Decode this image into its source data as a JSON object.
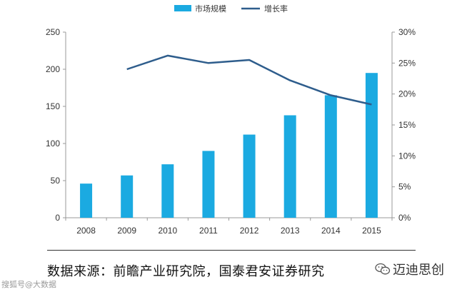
{
  "chart_data": {
    "type": "bar",
    "categories": [
      "2008",
      "2009",
      "2010",
      "2011",
      "2012",
      "2013",
      "2014",
      "2015"
    ],
    "series": [
      {
        "name": "市场规模",
        "type": "bar",
        "axis": "left",
        "color": "#1BAAE1",
        "values": [
          46,
          57,
          72,
          90,
          112,
          138,
          165,
          195
        ]
      },
      {
        "name": "增长率",
        "type": "line",
        "axis": "right",
        "color": "#2E5D8C",
        "values": [
          null,
          0.24,
          0.262,
          0.25,
          0.255,
          0.222,
          0.198,
          0.183
        ]
      }
    ],
    "yleft": {
      "min": 0,
      "max": 250,
      "step": 50,
      "ticks": [
        "0",
        "50",
        "100",
        "150",
        "200",
        "250"
      ]
    },
    "yright": {
      "min": 0,
      "max": 0.3,
      "step": 0.05,
      "ticks": [
        "0%",
        "5%",
        "10%",
        "15%",
        "20%",
        "25%",
        "30%"
      ]
    },
    "legend": {
      "position": "top-center",
      "items": [
        "市场规模",
        "增长率"
      ]
    },
    "grid": false
  },
  "source_text": "数据来源：前瞻产业研究院，国泰君安证券研究",
  "watermark_right": "迈迪思创",
  "watermark_left": "搜狐号@大数据"
}
